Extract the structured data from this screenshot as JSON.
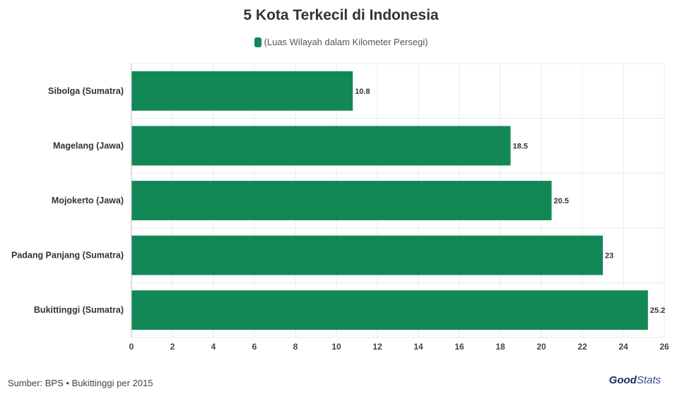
{
  "title": "5 Kota Terkecil di Indonesia",
  "legend": {
    "label": "(Luas Wilayah dalam Kilometer Persegi)"
  },
  "colors": {
    "bar": "#118855",
    "grid": "#e8e8e8",
    "text": "#333333"
  },
  "footer": {
    "source": "Sumber: BPS • Bukittinggi per 2015"
  },
  "logo": {
    "good": "Good",
    "stats": "Stats"
  },
  "chart_data": {
    "type": "bar",
    "orientation": "horizontal",
    "title": "5 Kota Terkecil di Indonesia",
    "categories": [
      "Sibolga (Sumatra)",
      "Magelang (Jawa)",
      "Mojokerto (Jawa)",
      "Padang Panjang (Sumatra)",
      "Bukittinggi (Sumatra)"
    ],
    "series": [
      {
        "name": "(Luas Wilayah dalam Kilometer Persegi)",
        "values": [
          10.8,
          18.5,
          20.5,
          23,
          25.2
        ]
      }
    ],
    "value_labels": [
      "10.8",
      "18.5",
      "20.5",
      "23",
      "25.2"
    ],
    "xlim": [
      0,
      26
    ],
    "xticks": [
      0,
      2,
      4,
      6,
      8,
      10,
      12,
      14,
      16,
      18,
      20,
      22,
      24,
      26
    ],
    "grid": true,
    "legend_position": "top-center"
  }
}
